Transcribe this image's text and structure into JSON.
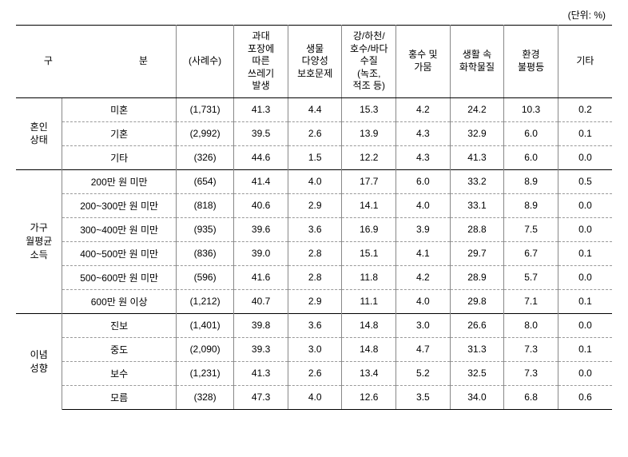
{
  "unit_label": "(단위: %)",
  "headers": {
    "category": "구　　　분",
    "n": "(사례수)",
    "col1": "과대\n포장에\n따른\n쓰레기\n발생",
    "col2": "생물\n다양성\n보호문제",
    "col3": "강/하천/\n호수/바다\n수질\n(녹조,\n적조 등)",
    "col4": "홍수 및\n가뭄",
    "col5": "생활 속\n화학물질",
    "col6": "환경\n불평등",
    "col7": "기타"
  },
  "groups": [
    {
      "label": "혼인\n상태",
      "rows": [
        {
          "sub": "미혼",
          "n": "(1,731)",
          "v": [
            "41.3",
            "4.4",
            "15.3",
            "4.2",
            "24.2",
            "10.3",
            "0.2"
          ]
        },
        {
          "sub": "기혼",
          "n": "(2,992)",
          "v": [
            "39.5",
            "2.6",
            "13.9",
            "4.3",
            "32.9",
            "6.0",
            "0.1"
          ]
        },
        {
          "sub": "기타",
          "n": "(326)",
          "v": [
            "44.6",
            "1.5",
            "12.2",
            "4.3",
            "41.3",
            "6.0",
            "0.0"
          ]
        }
      ]
    },
    {
      "label": "가구\n월평균\n소득",
      "rows": [
        {
          "sub": "200만 원 미만",
          "n": "(654)",
          "v": [
            "41.4",
            "4.0",
            "17.7",
            "6.0",
            "33.2",
            "8.9",
            "0.5"
          ]
        },
        {
          "sub": "200~300만 원 미만",
          "n": "(818)",
          "v": [
            "40.6",
            "2.9",
            "14.1",
            "4.0",
            "33.1",
            "8.9",
            "0.0"
          ]
        },
        {
          "sub": "300~400만 원 미만",
          "n": "(935)",
          "v": [
            "39.6",
            "3.6",
            "16.9",
            "3.9",
            "28.8",
            "7.5",
            "0.0"
          ]
        },
        {
          "sub": "400~500만 원 미만",
          "n": "(836)",
          "v": [
            "39.0",
            "2.8",
            "15.1",
            "4.1",
            "29.7",
            "6.7",
            "0.1"
          ]
        },
        {
          "sub": "500~600만 원 미만",
          "n": "(596)",
          "v": [
            "41.6",
            "2.8",
            "11.8",
            "4.2",
            "28.9",
            "5.7",
            "0.0"
          ]
        },
        {
          "sub": "600만 원 이상",
          "n": "(1,212)",
          "v": [
            "40.7",
            "2.9",
            "11.1",
            "4.0",
            "29.8",
            "7.1",
            "0.1"
          ]
        }
      ]
    },
    {
      "label": "이념\n성향",
      "rows": [
        {
          "sub": "진보",
          "n": "(1,401)",
          "v": [
            "39.8",
            "3.6",
            "14.8",
            "3.0",
            "26.6",
            "8.0",
            "0.0"
          ]
        },
        {
          "sub": "중도",
          "n": "(2,090)",
          "v": [
            "39.3",
            "3.0",
            "14.8",
            "4.7",
            "31.3",
            "7.3",
            "0.1"
          ]
        },
        {
          "sub": "보수",
          "n": "(1,231)",
          "v": [
            "41.3",
            "2.6",
            "13.4",
            "5.2",
            "32.5",
            "7.3",
            "0.0"
          ]
        },
        {
          "sub": "모름",
          "n": "(328)",
          "v": [
            "47.3",
            "4.0",
            "12.6",
            "3.5",
            "34.0",
            "6.8",
            "0.6"
          ]
        }
      ]
    }
  ]
}
